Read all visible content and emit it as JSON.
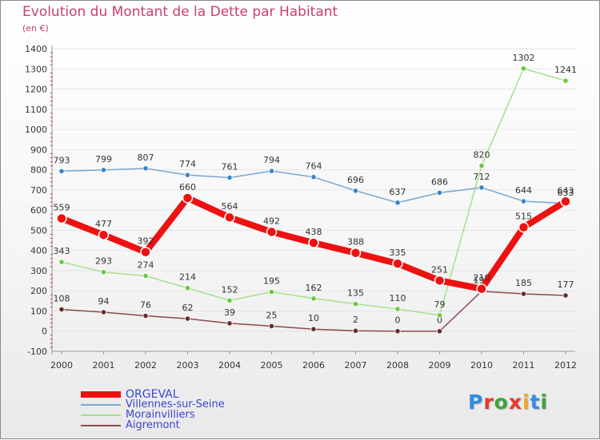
{
  "title": "Evolution du Montant de la Dette par Habitant",
  "subtitle": "(en €)",
  "logo": {
    "letters": [
      "P",
      "r",
      "o",
      "x",
      "i",
      "t",
      "i"
    ],
    "colors": [
      "#2e8de0",
      "#e5392b",
      "#3aa63a",
      "#e5392b",
      "#f5a623",
      "#2e8de0",
      "#3aa63a"
    ]
  },
  "chart_data": {
    "type": "line",
    "categories": [
      "2000",
      "2001",
      "2002",
      "2003",
      "2004",
      "2005",
      "2006",
      "2007",
      "2008",
      "2009",
      "2010",
      "2011",
      "2012"
    ],
    "ylim": [
      -100,
      1400
    ],
    "yticks": [
      -100,
      0,
      100,
      200,
      300,
      400,
      500,
      600,
      700,
      800,
      900,
      1000,
      1100,
      1200,
      1300,
      1400
    ],
    "ytick_labels": [
      "-100",
      "0",
      "100",
      "200",
      "300",
      "400",
      "500",
      "600",
      "700",
      "800",
      "900",
      "1000",
      "1100",
      "1200",
      "1300",
      "1400"
    ],
    "grid": "horizontal dashed",
    "legend_position": "bottom-left",
    "series": [
      {
        "name": "ORGEVAL",
        "color": "#ee1111",
        "line_width": 8,
        "marker_radius": 6,
        "values": [
          559,
          477,
          392,
          660,
          564,
          492,
          438,
          388,
          335,
          251,
          210,
          515,
          643
        ],
        "labels": [
          "559",
          "477",
          "392",
          "660",
          "564",
          "492",
          "438",
          "388",
          "335",
          "251",
          "210",
          "515",
          "643"
        ]
      },
      {
        "name": "Villennes-sur-Seine",
        "color": "#7aa6cf",
        "marker_color": "#3a84c8",
        "line_width": 1.5,
        "marker_radius": 3.2,
        "values": [
          793,
          799,
          807,
          774,
          761,
          794,
          764,
          696,
          637,
          686,
          712,
          644,
          633
        ],
        "labels": [
          "793",
          "799",
          "807",
          "774",
          "761",
          "794",
          "764",
          "696",
          "637",
          "686",
          "712",
          "644",
          "633"
        ]
      },
      {
        "name": "Morainvilliers",
        "color": "#a6e08a",
        "marker_color": "#6cc83a",
        "line_width": 1.5,
        "marker_radius": 3.2,
        "values": [
          343,
          293,
          274,
          214,
          152,
          195,
          162,
          135,
          110,
          79,
          820,
          1302,
          1241
        ],
        "labels": [
          "343",
          "293",
          "274",
          "214",
          "152",
          "195",
          "162",
          "135",
          "110",
          "79",
          "820",
          "1302",
          "1241"
        ]
      },
      {
        "name": "Aigremont",
        "color": "#8a4a4a",
        "marker_color": "#6a2a2a",
        "line_width": 1.5,
        "marker_radius": 3.2,
        "values": [
          108,
          94,
          76,
          62,
          39,
          25,
          10,
          2,
          0,
          0,
          198,
          185,
          177
        ],
        "labels": [
          "108",
          "94",
          "76",
          "62",
          "39",
          "25",
          "10",
          "2",
          "0",
          "0",
          "198",
          "185",
          "177"
        ]
      }
    ]
  }
}
